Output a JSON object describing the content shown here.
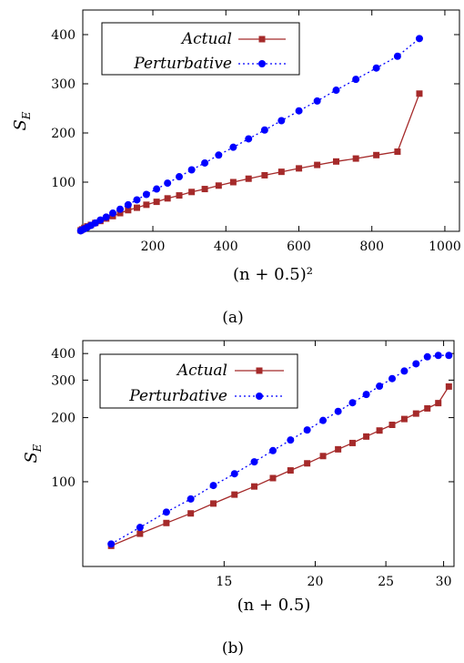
{
  "chart_data": [
    {
      "type": "line",
      "caption": "(a)",
      "xlabel": "(n + 0.5)²",
      "ylabel": "S_E",
      "xlim": [
        8,
        1040
      ],
      "ylim": [
        0,
        450
      ],
      "xscale": "linear",
      "yscale": "linear",
      "xticks": [
        200,
        400,
        600,
        800,
        1000
      ],
      "yticks": [
        100,
        200,
        300,
        400
      ],
      "legend_position": "top-left",
      "grid": false,
      "series": [
        {
          "name": "Actual",
          "color": "#a52a2a",
          "marker": "square",
          "line": "solid",
          "x": [
            2.25,
            6.25,
            12.25,
            20.25,
            30.25,
            42.25,
            56.25,
            72.25,
            90.25,
            110.25,
            132.25,
            156.25,
            182.25,
            210.25,
            240.25,
            272.25,
            306.25,
            342.25,
            380.25,
            420.25,
            462.25,
            506.25,
            552.25,
            600.25,
            650.25,
            702.25,
            756.25,
            812.25,
            870.25,
            930.25
          ],
          "values": [
            2,
            4,
            7,
            10,
            13,
            17,
            21,
            26,
            31,
            37,
            43,
            48,
            54,
            60,
            67,
            73,
            80,
            86,
            93,
            100,
            107,
            114,
            121,
            128,
            135,
            142,
            148,
            155,
            162,
            280
          ]
        },
        {
          "name": "Perturbative",
          "color": "#0000ff",
          "marker": "circle",
          "line": "dotted",
          "x": [
            2.25,
            6.25,
            12.25,
            20.25,
            30.25,
            42.25,
            56.25,
            72.25,
            90.25,
            110.25,
            132.25,
            156.25,
            182.25,
            210.25,
            240.25,
            272.25,
            306.25,
            342.25,
            380.25,
            420.25,
            462.25,
            506.25,
            552.25,
            600.25,
            650.25,
            702.25,
            756.25,
            812.25,
            870.25,
            930.25
          ],
          "values": [
            1,
            3,
            5,
            8,
            12,
            17,
            23,
            29,
            37,
            45,
            54,
            64,
            75,
            86,
            98,
            111,
            125,
            139,
            155,
            171,
            188,
            206,
            225,
            245,
            265,
            287,
            309,
            332,
            356,
            392
          ]
        }
      ]
    },
    {
      "type": "line",
      "caption": "(b)",
      "xlabel": "(n + 0.5)",
      "ylabel": "S_E",
      "xlim": [
        9.6,
        31
      ],
      "ylim": [
        40,
        460
      ],
      "xscale": "log",
      "yscale": "log",
      "xticks": [
        15,
        20,
        25,
        30
      ],
      "yticks": [
        100,
        200,
        300,
        400
      ],
      "legend_position": "top-left",
      "grid": false,
      "series": [
        {
          "name": "Actual",
          "color": "#a52a2a",
          "marker": "square",
          "line": "solid",
          "x": [
            10.5,
            11.5,
            12.5,
            13.5,
            14.5,
            15.5,
            16.5,
            17.5,
            18.5,
            19.5,
            20.5,
            21.5,
            22.5,
            23.5,
            24.5,
            25.5,
            26.5,
            27.5,
            28.5,
            29.5,
            30.5
          ],
          "values": [
            50,
            57,
            64,
            71,
            79,
            87,
            95,
            104,
            113,
            122,
            132,
            142,
            152,
            163,
            174,
            185,
            197,
            209,
            221,
            234,
            280
          ]
        },
        {
          "name": "Perturbative",
          "color": "#0000ff",
          "marker": "circle",
          "line": "dotted",
          "x": [
            10.5,
            11.5,
            12.5,
            13.5,
            14.5,
            15.5,
            16.5,
            17.5,
            18.5,
            19.5,
            20.5,
            21.5,
            22.5,
            23.5,
            24.5,
            25.5,
            26.5,
            27.5,
            28.5,
            29.5,
            30.5
          ],
          "values": [
            51,
            61,
            72,
            83,
            96,
            109,
            124,
            140,
            157,
            175,
            194,
            214,
            235,
            257,
            281,
            305,
            331,
            358,
            386,
            392,
            392
          ]
        }
      ]
    }
  ]
}
